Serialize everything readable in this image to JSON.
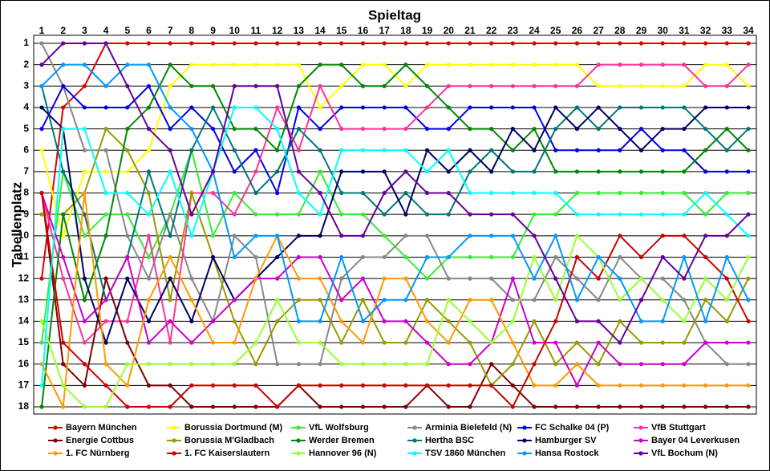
{
  "chart_data": {
    "type": "line",
    "title": "Spieltag",
    "y_label": "Tabellenplatz",
    "x": [
      1,
      2,
      3,
      4,
      5,
      6,
      7,
      8,
      9,
      10,
      11,
      12,
      13,
      14,
      15,
      16,
      17,
      18,
      19,
      20,
      21,
      22,
      23,
      24,
      25,
      26,
      27,
      28,
      29,
      30,
      31,
      32,
      33,
      34
    ],
    "xlim": [
      1,
      34
    ],
    "xticks": [
      1,
      2,
      3,
      4,
      5,
      6,
      7,
      8,
      9,
      10,
      11,
      12,
      13,
      14,
      15,
      16,
      17,
      18,
      19,
      20,
      21,
      22,
      23,
      24,
      25,
      26,
      27,
      28,
      29,
      30,
      31,
      32,
      33,
      34
    ],
    "ylim": [
      1,
      18
    ],
    "yticks": [
      1,
      2,
      3,
      4,
      5,
      6,
      7,
      8,
      9,
      10,
      11,
      12,
      13,
      14,
      15,
      16,
      17,
      18
    ],
    "y_inverted": true,
    "grid": true,
    "series": [
      {
        "name": "Bayern München",
        "color": "#e00000",
        "values": [
          12,
          4,
          3,
          1,
          1,
          1,
          1,
          1,
          1,
          1,
          1,
          1,
          1,
          1,
          1,
          1,
          1,
          1,
          1,
          1,
          1,
          1,
          1,
          1,
          1,
          1,
          1,
          1,
          1,
          1,
          1,
          1,
          1,
          1
        ]
      },
      {
        "name": "Borussia Dortmund (M)",
        "color": "#ffff00",
        "values": [
          6,
          10,
          7,
          7,
          7,
          6,
          3,
          2,
          2,
          2,
          2,
          2,
          2,
          4,
          3,
          2,
          2,
          3,
          2,
          2,
          2,
          2,
          2,
          2,
          2,
          2,
          3,
          3,
          3,
          3,
          3,
          2,
          2,
          3
        ]
      },
      {
        "name": "VfL Wolfsburg",
        "color": "#33ee33",
        "values": [
          15,
          7,
          10,
          9,
          9,
          11,
          9,
          6,
          10,
          8,
          9,
          9,
          9,
          7,
          9,
          9,
          10,
          11,
          12,
          11,
          11,
          11,
          11,
          9,
          9,
          8,
          8,
          8,
          8,
          8,
          8,
          9,
          8,
          8
        ]
      },
      {
        "name": "Arminia Bielefeld (N)",
        "color": "#888888",
        "values": [
          1,
          3,
          6,
          6,
          10,
          12,
          9,
          12,
          14,
          10,
          11,
          16,
          16,
          16,
          12,
          11,
          11,
          10,
          10,
          12,
          12,
          12,
          13,
          13,
          11,
          12,
          13,
          11,
          12,
          12,
          13,
          15,
          16,
          16
        ]
      },
      {
        "name": "FC Schalke 04 (P)",
        "color": "#0000ee",
        "values": [
          5,
          3,
          4,
          4,
          4,
          3,
          5,
          4,
          5,
          7,
          6,
          8,
          4,
          5,
          4,
          4,
          4,
          4,
          5,
          5,
          4,
          4,
          4,
          4,
          6,
          6,
          6,
          6,
          5,
          6,
          6,
          7,
          7,
          7
        ]
      },
      {
        "name": "VfB Stuttgart",
        "color": "#ff3399",
        "values": [
          8,
          12,
          15,
          14,
          14,
          10,
          15,
          8,
          8,
          9,
          7,
          4,
          6,
          3,
          5,
          5,
          5,
          5,
          4,
          3,
          3,
          3,
          3,
          3,
          3,
          3,
          2,
          2,
          2,
          2,
          2,
          3,
          3,
          2
        ]
      },
      {
        "name": "Energie Cottbus",
        "color": "#800000",
        "values": [
          8,
          16,
          17,
          12,
          15,
          17,
          17,
          18,
          18,
          18,
          18,
          18,
          17,
          18,
          18,
          18,
          18,
          18,
          17,
          18,
          18,
          16,
          17,
          18,
          18,
          18,
          18,
          18,
          18,
          18,
          18,
          18,
          18,
          18
        ]
      },
      {
        "name": "Borussia M'Gladbach",
        "color": "#999900",
        "values": [
          9,
          9,
          8,
          5,
          6,
          8,
          13,
          8,
          11,
          14,
          16,
          14,
          13,
          13,
          15,
          13,
          15,
          15,
          13,
          14,
          15,
          17,
          16,
          14,
          16,
          15,
          16,
          14,
          15,
          15,
          15,
          13,
          14,
          12
        ]
      },
      {
        "name": "Werder Bremen",
        "color": "#008800",
        "values": [
          18,
          9,
          13,
          10,
          5,
          4,
          2,
          3,
          3,
          5,
          5,
          6,
          3,
          2,
          2,
          3,
          3,
          2,
          3,
          4,
          5,
          5,
          6,
          5,
          7,
          7,
          7,
          7,
          7,
          7,
          7,
          6,
          5,
          6
        ]
      },
      {
        "name": "Hertha BSC",
        "color": "#007777",
        "values": [
          3,
          7,
          9,
          13,
          11,
          7,
          10,
          6,
          4,
          6,
          8,
          7,
          5,
          6,
          8,
          8,
          9,
          8,
          9,
          9,
          7,
          6,
          7,
          7,
          5,
          4,
          5,
          4,
          4,
          4,
          4,
          5,
          6,
          5
        ]
      },
      {
        "name": "Hamburger SV",
        "color": "#000066",
        "values": [
          4,
          5,
          12,
          15,
          12,
          14,
          12,
          14,
          11,
          13,
          12,
          11,
          10,
          10,
          7,
          7,
          7,
          9,
          6,
          7,
          6,
          7,
          5,
          6,
          4,
          5,
          4,
          5,
          6,
          5,
          5,
          4,
          4,
          4
        ]
      },
      {
        "name": "Bayer 04 Leverkusen",
        "color": "#cc00cc",
        "values": [
          8,
          11,
          14,
          13,
          11,
          15,
          14,
          15,
          14,
          13,
          12,
          12,
          11,
          11,
          13,
          12,
          14,
          14,
          15,
          16,
          16,
          15,
          12,
          15,
          15,
          17,
          15,
          16,
          16,
          16,
          16,
          15,
          15,
          15
        ]
      },
      {
        "name": "1. FC Nürnberg",
        "color": "#ff9900",
        "values": [
          16,
          18,
          8,
          16,
          17,
          13,
          11,
          13,
          15,
          15,
          12,
          10,
          12,
          12,
          14,
          15,
          12,
          12,
          14,
          15,
          13,
          13,
          15,
          17,
          17,
          16,
          17,
          17,
          17,
          17,
          17,
          17,
          17,
          17
        ]
      },
      {
        "name": "1. FC Kaiserslautern",
        "color": "#cc0000",
        "values": [
          8,
          15,
          16,
          17,
          18,
          18,
          18,
          17,
          17,
          17,
          17,
          18,
          17,
          17,
          17,
          17,
          17,
          17,
          17,
          17,
          17,
          17,
          18,
          16,
          14,
          11,
          12,
          10,
          11,
          10,
          10,
          11,
          12,
          14
        ]
      },
      {
        "name": "Hannover 96 (N)",
        "color": "#99ff33",
        "values": [
          14,
          17,
          18,
          18,
          16,
          16,
          16,
          16,
          16,
          16,
          15,
          13,
          15,
          15,
          16,
          16,
          16,
          16,
          16,
          13,
          14,
          15,
          14,
          11,
          13,
          10,
          11,
          13,
          12,
          13,
          14,
          12,
          13,
          11
        ]
      },
      {
        "name": "TSV 1860 München",
        "color": "#00ffff",
        "values": [
          17,
          5,
          5,
          8,
          8,
          9,
          7,
          10,
          7,
          4,
          4,
          5,
          8,
          9,
          6,
          6,
          6,
          6,
          7,
          6,
          8,
          8,
          8,
          8,
          8,
          9,
          9,
          9,
          9,
          9,
          9,
          8,
          9,
          10
        ]
      },
      {
        "name": "Hansa Rostock",
        "color": "#0099ff",
        "values": [
          3,
          2,
          2,
          3,
          2,
          2,
          4,
          5,
          7,
          11,
          10,
          10,
          14,
          14,
          11,
          14,
          13,
          13,
          11,
          11,
          10,
          10,
          10,
          12,
          10,
          13,
          11,
          12,
          14,
          14,
          11,
          14,
          11,
          13
        ]
      },
      {
        "name": "VfL Bochum (N)",
        "color": "#660099",
        "values": [
          2,
          1,
          1,
          1,
          3,
          5,
          6,
          9,
          7,
          3,
          3,
          3,
          7,
          8,
          10,
          10,
          8,
          7,
          8,
          8,
          9,
          9,
          9,
          10,
          12,
          14,
          14,
          15,
          13,
          11,
          12,
          10,
          10,
          9
        ]
      }
    ]
  }
}
